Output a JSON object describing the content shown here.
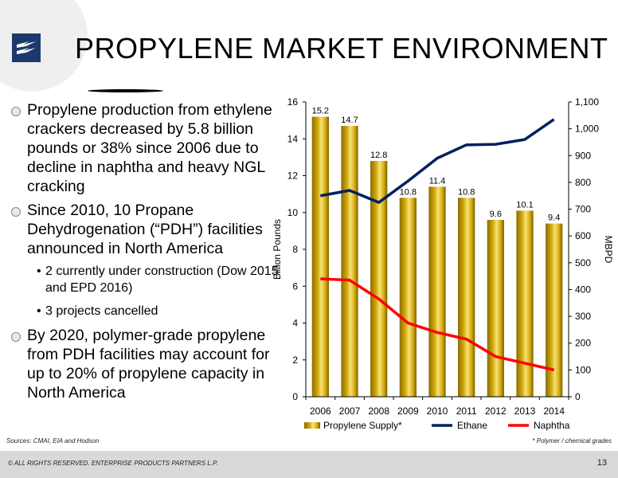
{
  "title": "PROPYLENE MARKET ENVIRONMENT",
  "bullets": [
    "Propylene production from ethylene crackers decreased by 5.8 billion pounds or 38% since 2006 due to decline in naphtha and heavy NGL cracking",
    "Since 2010, 10 Propane Dehydrogenation (“PDH”) facilities announced in North America",
    "By 2020, polymer-grade propylene from PDH facilities may account for up to 20% of propylene capacity in North America"
  ],
  "sub_bullets": [
    "2 currently under construction (Dow 2015 and EPD 2016)",
    "3 projects cancelled"
  ],
  "sources": "Sources:  CMAI, EIA and Hodson",
  "footnote": "* Polymer / chemical grades",
  "copyright": "© ALL RIGHTS RESERVED. ENTERPRISE PRODUCTS PARTNERS L.P.",
  "page_number": "13",
  "colors": {
    "bar": "#d4ac0d",
    "ethane": "#002060",
    "naphtha": "#ff0000"
  },
  "chart_data": {
    "type": "bar",
    "categories": [
      "2006",
      "2007",
      "2008",
      "2009",
      "2010",
      "2011",
      "2012",
      "2013",
      "2014"
    ],
    "series": [
      {
        "name": "Propylene Supply*",
        "type": "bar",
        "axis": "left",
        "values": [
          15.2,
          14.7,
          12.8,
          10.8,
          11.4,
          10.8,
          9.6,
          10.1,
          9.4
        ]
      },
      {
        "name": "Ethane",
        "type": "line",
        "axis": "right",
        "values": [
          750,
          770,
          725,
          805,
          890,
          940,
          942,
          960,
          1035
        ]
      },
      {
        "name": "Naphtha",
        "type": "line",
        "axis": "right",
        "values": [
          440,
          435,
          365,
          275,
          240,
          215,
          150,
          125,
          100
        ]
      }
    ],
    "data_labels": [
      "15.2",
      "14.7",
      "12.8",
      "10.8",
      "11.4",
      "10.8",
      "9.6",
      "10.1",
      "9.4"
    ],
    "ylabel": "Billion Pounds",
    "y2label": "MBPD",
    "ylim": [
      0,
      16
    ],
    "y2lim": [
      0,
      1100
    ],
    "yticks": [
      "0",
      "2",
      "4",
      "6",
      "8",
      "10",
      "12",
      "14",
      "16"
    ],
    "y2ticks": [
      "0",
      "100",
      "200",
      "300",
      "400",
      "500",
      "600",
      "700",
      "800",
      "900",
      "1,000",
      "1,100"
    ],
    "legend_position": "bottom",
    "grid": false
  }
}
